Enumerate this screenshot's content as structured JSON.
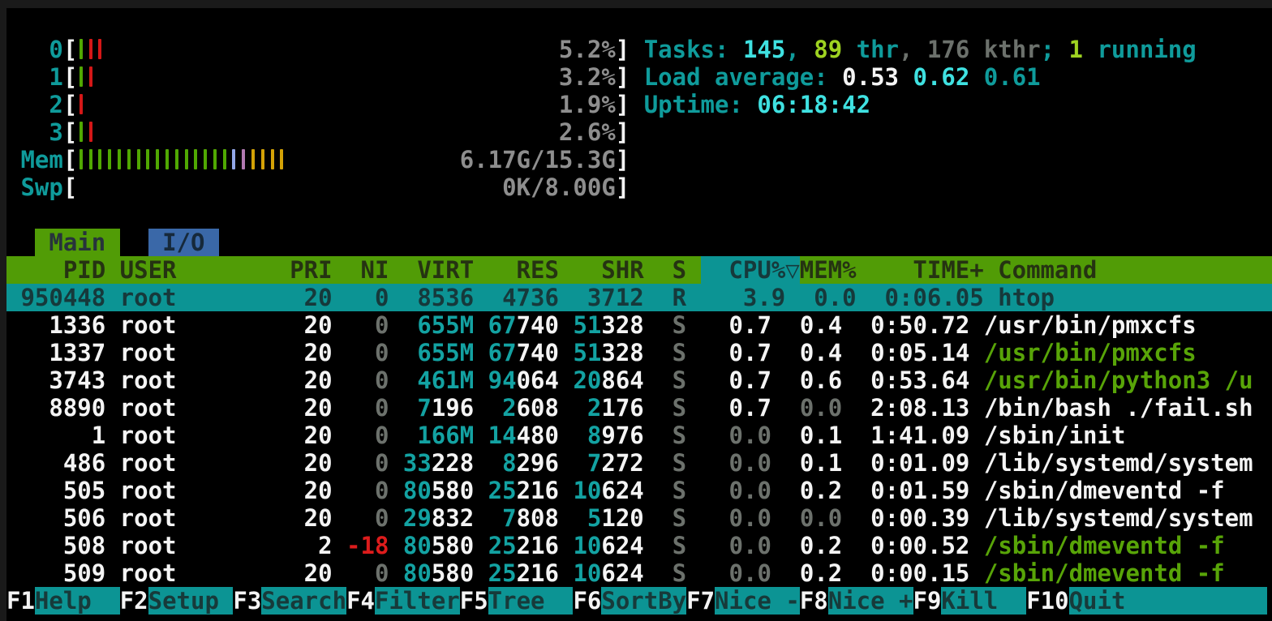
{
  "app_title": "htop",
  "colors": {
    "background": "#000000",
    "accent_teal": "#0c9494",
    "header_green": "#519c06",
    "tab_blue": "#3a68a8",
    "bright_cyan": "#3fe1e1",
    "bright_green": "#9ed321",
    "command_green": "#58a408",
    "nice_red": "#dd1c1c"
  },
  "meters": [
    {
      "name": "cpu-meter-0",
      "label": "0",
      "value": "5.2%",
      "bars": [
        "g",
        "r",
        "r"
      ]
    },
    {
      "name": "cpu-meter-1",
      "label": "1",
      "value": "3.2%",
      "bars": [
        "g",
        "r"
      ]
    },
    {
      "name": "cpu-meter-2",
      "label": "2",
      "value": "1.9%",
      "bars": [
        "r"
      ]
    },
    {
      "name": "cpu-meter-3",
      "label": "3",
      "value": "2.6%",
      "bars": [
        "g",
        "r"
      ]
    },
    {
      "name": "memory-meter",
      "label": "Mem",
      "value": "6.17G/15.3G",
      "bars": [
        "g",
        "g",
        "g",
        "g",
        "g",
        "g",
        "g",
        "g",
        "g",
        "g",
        "g",
        "g",
        "g",
        "g",
        "g",
        "g",
        "b",
        "m",
        "y",
        "y",
        "y",
        "y"
      ]
    },
    {
      "name": "swap-meter",
      "label": "Swp",
      "value": "0K/8.00G",
      "bars": []
    }
  ],
  "summary": [
    {
      "name": "tasks-summary",
      "segs": [
        [
          "Tasks: ",
          "t"
        ],
        [
          "145",
          "bc"
        ],
        [
          ", ",
          "t"
        ],
        [
          "89",
          "gn"
        ],
        [
          " thr",
          "t"
        ],
        [
          ", 176 kthr",
          "dg"
        ],
        [
          "; ",
          "t"
        ],
        [
          "1",
          "gn"
        ],
        [
          " running",
          "t"
        ]
      ]
    },
    {
      "name": "load-average",
      "segs": [
        [
          "Load average: ",
          "t"
        ],
        [
          "0.53 ",
          "w"
        ],
        [
          "0.62 ",
          "bc"
        ],
        [
          "0.61",
          "t"
        ]
      ]
    },
    {
      "name": "uptime",
      "segs": [
        [
          "Uptime: ",
          "t"
        ],
        [
          "06:18:42",
          "bc"
        ]
      ]
    }
  ],
  "tabs": [
    {
      "name": "tab-main",
      "label": " Main ",
      "style": "tabmain",
      "active": true
    },
    {
      "name": "tab-io",
      "label": " I/O ",
      "style": "tabio",
      "active": false
    }
  ],
  "table": {
    "header_left": "    PID USER        PRI  NI  VIRT   RES   SHR  S ",
    "header_sort": " CPU%▽",
    "header_right": "MEM%    TIME+ Command",
    "sort_column": "CPU%"
  },
  "rows": [
    {
      "pid": "950448",
      "selected": true,
      "cells": [
        [
          " 950448 root         20   0  8536  4736  3712  R    3.9  0.0  0:06.05 htop",
          "sel"
        ]
      ]
    },
    {
      "pid": "1336",
      "selected": false,
      "cells": [
        [
          "   1336 root         20",
          "w"
        ],
        [
          "   0",
          "dg"
        ],
        [
          "  ",
          "w"
        ],
        [
          "655M",
          "c"
        ],
        [
          " ",
          "w"
        ],
        [
          "67",
          "c"
        ],
        [
          "740",
          "w"
        ],
        [
          " ",
          "w"
        ],
        [
          "51",
          "c"
        ],
        [
          "328",
          "w"
        ],
        [
          "  S",
          "dg"
        ],
        [
          "   0.7  0.4  0:50.72 /usr/bin/pmxcfs",
          "w"
        ]
      ]
    },
    {
      "pid": "1337",
      "selected": false,
      "cells": [
        [
          "   1337 root         20",
          "w"
        ],
        [
          "   0",
          "dg"
        ],
        [
          "  ",
          "w"
        ],
        [
          "655M",
          "c"
        ],
        [
          " ",
          "w"
        ],
        [
          "67",
          "c"
        ],
        [
          "740",
          "w"
        ],
        [
          " ",
          "w"
        ],
        [
          "51",
          "c"
        ],
        [
          "328",
          "w"
        ],
        [
          "  S",
          "dg"
        ],
        [
          "   0.7  0.4  0:05.14 ",
          "w"
        ],
        [
          "/usr/bin/pmxcfs",
          "cg"
        ]
      ]
    },
    {
      "pid": "3743",
      "selected": false,
      "cells": [
        [
          "   3743 root         20",
          "w"
        ],
        [
          "   0",
          "dg"
        ],
        [
          "  ",
          "w"
        ],
        [
          "461M",
          "c"
        ],
        [
          " ",
          "w"
        ],
        [
          "94",
          "c"
        ],
        [
          "064",
          "w"
        ],
        [
          " ",
          "w"
        ],
        [
          "20",
          "c"
        ],
        [
          "864",
          "w"
        ],
        [
          "  S",
          "dg"
        ],
        [
          "   0.7  0.6  0:53.64 ",
          "w"
        ],
        [
          "/usr/bin/python3 /u",
          "cg"
        ]
      ]
    },
    {
      "pid": "8890",
      "selected": false,
      "cells": [
        [
          "   8890 root         20",
          "w"
        ],
        [
          "   0",
          "dg"
        ],
        [
          "  ",
          "w"
        ],
        [
          "7",
          "c"
        ],
        [
          "196",
          "w"
        ],
        [
          "  ",
          "w"
        ],
        [
          "2",
          "c"
        ],
        [
          "608",
          "w"
        ],
        [
          "  ",
          "w"
        ],
        [
          "2",
          "c"
        ],
        [
          "176",
          "w"
        ],
        [
          "  S",
          "dg"
        ],
        [
          "   0.7  ",
          "w"
        ],
        [
          "0.0",
          "dg"
        ],
        [
          "  2:08.13 /bin/bash ./fail.sh",
          "w"
        ]
      ]
    },
    {
      "pid": "1",
      "selected": false,
      "cells": [
        [
          "      1 root         20",
          "w"
        ],
        [
          "   0",
          "dg"
        ],
        [
          "  ",
          "w"
        ],
        [
          "166M",
          "c"
        ],
        [
          " ",
          "w"
        ],
        [
          "14",
          "c"
        ],
        [
          "480",
          "w"
        ],
        [
          "  ",
          "w"
        ],
        [
          "8",
          "c"
        ],
        [
          "976",
          "w"
        ],
        [
          "  S",
          "dg"
        ],
        [
          "   ",
          "w"
        ],
        [
          "0.0",
          "dg"
        ],
        [
          "  0.1  1:41.09 /sbin/init",
          "w"
        ]
      ]
    },
    {
      "pid": "486",
      "selected": false,
      "cells": [
        [
          "    486 root         20",
          "w"
        ],
        [
          "   0",
          "dg"
        ],
        [
          " ",
          "w"
        ],
        [
          "33",
          "c"
        ],
        [
          "228",
          "w"
        ],
        [
          "  ",
          "w"
        ],
        [
          "8",
          "c"
        ],
        [
          "296",
          "w"
        ],
        [
          "  ",
          "w"
        ],
        [
          "7",
          "c"
        ],
        [
          "272",
          "w"
        ],
        [
          "  S",
          "dg"
        ],
        [
          "   ",
          "w"
        ],
        [
          "0.0",
          "dg"
        ],
        [
          "  0.1  0:01.09 /lib/systemd/system",
          "w"
        ]
      ]
    },
    {
      "pid": "505",
      "selected": false,
      "cells": [
        [
          "    505 root         20",
          "w"
        ],
        [
          "   0",
          "dg"
        ],
        [
          " ",
          "w"
        ],
        [
          "80",
          "c"
        ],
        [
          "580",
          "w"
        ],
        [
          " ",
          "w"
        ],
        [
          "25",
          "c"
        ],
        [
          "216",
          "w"
        ],
        [
          " ",
          "w"
        ],
        [
          "10",
          "c"
        ],
        [
          "624",
          "w"
        ],
        [
          "  S",
          "dg"
        ],
        [
          "   ",
          "w"
        ],
        [
          "0.0",
          "dg"
        ],
        [
          "  0.2  0:01.59 /sbin/dmeventd -f",
          "w"
        ]
      ]
    },
    {
      "pid": "506",
      "selected": false,
      "cells": [
        [
          "    506 root         20",
          "w"
        ],
        [
          "   0",
          "dg"
        ],
        [
          " ",
          "w"
        ],
        [
          "29",
          "c"
        ],
        [
          "832",
          "w"
        ],
        [
          "  ",
          "w"
        ],
        [
          "7",
          "c"
        ],
        [
          "808",
          "w"
        ],
        [
          "  ",
          "w"
        ],
        [
          "5",
          "c"
        ],
        [
          "120",
          "w"
        ],
        [
          "  S",
          "dg"
        ],
        [
          "   ",
          "w"
        ],
        [
          "0.0",
          "dg"
        ],
        [
          "  ",
          "w"
        ],
        [
          "0.0",
          "dg"
        ],
        [
          "  0:00.39 /lib/systemd/system",
          "w"
        ]
      ]
    },
    {
      "pid": "508",
      "selected": false,
      "cells": [
        [
          "    508 root          2",
          "w"
        ],
        [
          " ",
          "w"
        ],
        [
          "-18",
          "rd"
        ],
        [
          " ",
          "w"
        ],
        [
          "80",
          "c"
        ],
        [
          "580",
          "w"
        ],
        [
          " ",
          "w"
        ],
        [
          "25",
          "c"
        ],
        [
          "216",
          "w"
        ],
        [
          " ",
          "w"
        ],
        [
          "10",
          "c"
        ],
        [
          "624",
          "w"
        ],
        [
          "  S",
          "dg"
        ],
        [
          "   ",
          "w"
        ],
        [
          "0.0",
          "dg"
        ],
        [
          "  0.2  0:00.52 ",
          "w"
        ],
        [
          "/sbin/dmeventd -f",
          "cg"
        ]
      ]
    },
    {
      "pid": "509",
      "selected": false,
      "cells": [
        [
          "    509 root         20",
          "w"
        ],
        [
          "   0",
          "dg"
        ],
        [
          " ",
          "w"
        ],
        [
          "80",
          "c"
        ],
        [
          "580",
          "w"
        ],
        [
          " ",
          "w"
        ],
        [
          "25",
          "c"
        ],
        [
          "216",
          "w"
        ],
        [
          " ",
          "w"
        ],
        [
          "10",
          "c"
        ],
        [
          "624",
          "w"
        ],
        [
          "  S",
          "dg"
        ],
        [
          "   ",
          "w"
        ],
        [
          "0.0",
          "dg"
        ],
        [
          "  0.2  0:00.15 ",
          "w"
        ],
        [
          "/sbin/dmeventd -f",
          "cg"
        ]
      ]
    }
  ],
  "fkeys": [
    {
      "key": "F1",
      "label": "Help  "
    },
    {
      "key": "F2",
      "label": "Setup "
    },
    {
      "key": "F3",
      "label": "Search"
    },
    {
      "key": "F4",
      "label": "Filter"
    },
    {
      "key": "F5",
      "label": "Tree  "
    },
    {
      "key": "F6",
      "label": "SortBy"
    },
    {
      "key": "F7",
      "label": "Nice -"
    },
    {
      "key": "F8",
      "label": "Nice +"
    },
    {
      "key": "F9",
      "label": "Kill  "
    },
    {
      "key": "F10",
      "label": "Quit          "
    }
  ],
  "lines": [
    {
      "type": "blank"
    },
    {
      "type": "meter",
      "meter": 0,
      "summary": 0
    },
    {
      "type": "meter",
      "meter": 1,
      "summary": 1
    },
    {
      "type": "meter",
      "meter": 2,
      "summary": 2
    },
    {
      "type": "meter",
      "meter": 3
    },
    {
      "type": "meter",
      "meter": 4
    },
    {
      "type": "meter",
      "meter": 5
    },
    {
      "type": "blank"
    },
    {
      "type": "tabs"
    },
    {
      "type": "header"
    },
    {
      "type": "row",
      "row": 0
    },
    {
      "type": "row",
      "row": 1
    },
    {
      "type": "row",
      "row": 2
    },
    {
      "type": "row",
      "row": 3
    },
    {
      "type": "row",
      "row": 4
    },
    {
      "type": "row",
      "row": 5
    },
    {
      "type": "row",
      "row": 6
    },
    {
      "type": "row",
      "row": 7
    },
    {
      "type": "row",
      "row": 8
    },
    {
      "type": "row",
      "row": 9
    },
    {
      "type": "row",
      "row": 10
    },
    {
      "type": "fkeys"
    }
  ]
}
